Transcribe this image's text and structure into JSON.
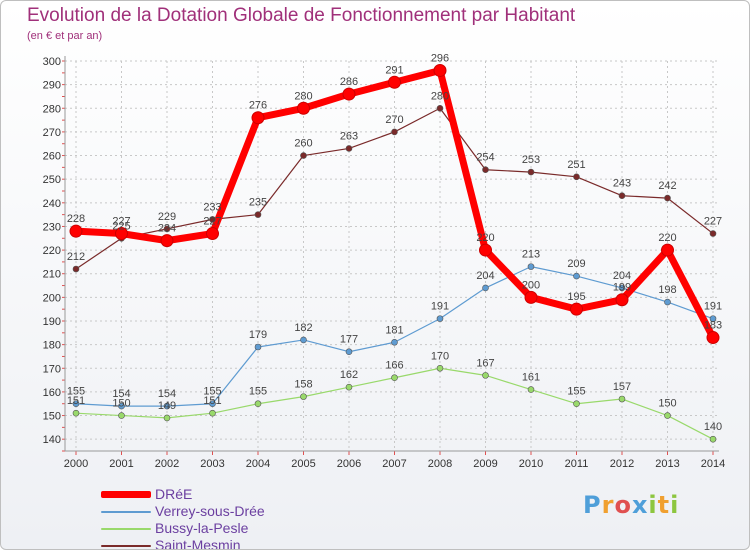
{
  "header": {
    "title": "Evolution de la Dotation Globale de Fonctionnement par Habitant",
    "subtitle": "(en € et par an)"
  },
  "logo": {
    "text": "Proxiti",
    "colors": [
      "#4f9fd9",
      "#f0a030",
      "#e05050",
      "#4f9fd9",
      "#8dc63f",
      "#f0a030",
      "#8dc63f"
    ]
  },
  "chart_data": {
    "type": "line",
    "title": "Evolution de la Dotation Globale de Fonctionnement par Habitant",
    "ylabel": "(en € et par an)",
    "xlabel": "",
    "ylim": [
      135,
      300
    ],
    "yticks": [
      140,
      150,
      160,
      170,
      180,
      190,
      200,
      210,
      220,
      230,
      240,
      250,
      260,
      270,
      280,
      290,
      300
    ],
    "grid": true,
    "legend": "bottom-left",
    "categories": [
      "2000",
      "2001",
      "2002",
      "2003",
      "2004",
      "2005",
      "2006",
      "2007",
      "2008",
      "2009",
      "2010",
      "2011",
      "2012",
      "2013",
      "2014"
    ],
    "series": [
      {
        "name": "DRéE",
        "color": "#ff0000",
        "values": [
          228,
          227,
          224,
          227,
          276,
          280,
          286,
          291,
          296,
          220,
          200,
          195,
          199,
          220,
          183
        ],
        "labels": [
          "228",
          "227",
          "224",
          "227",
          "276",
          "280",
          "286",
          "291",
          "296",
          "220",
          "200",
          "195",
          "199",
          "220",
          "183"
        ]
      },
      {
        "name": "Verrey-sous-Drée",
        "color": "#5e9bd1",
        "values": [
          155,
          154,
          154,
          155,
          179,
          182,
          177,
          181,
          191,
          204,
          213,
          209,
          204,
          198,
          191
        ],
        "labels": [
          "155",
          "154",
          "154",
          "155",
          "179",
          "182",
          "177",
          "181",
          "191",
          "204",
          "213",
          "209",
          "204",
          "198",
          "191"
        ]
      },
      {
        "name": "Bussy-la-Pesle",
        "color": "#99d96b",
        "values": [
          151,
          150,
          149,
          151,
          155,
          158,
          162,
          166,
          170,
          167,
          161,
          155,
          157,
          150,
          140
        ],
        "labels": [
          "151",
          "150",
          "149",
          "151",
          "155",
          "158",
          "162",
          "166",
          "170",
          "167",
          "161",
          "155",
          "157",
          "150",
          "140"
        ]
      },
      {
        "name": "Saint-Mesmin",
        "color": "#7a2a2a",
        "values": [
          212,
          225,
          229,
          233,
          235,
          260,
          263,
          270,
          280,
          254,
          253,
          251,
          243,
          242,
          227
        ],
        "labels": [
          "212",
          "225",
          "229",
          "233",
          "235",
          "260",
          "263",
          "270",
          "280",
          "254",
          "253",
          "251",
          "243",
          "242",
          "227"
        ]
      }
    ]
  }
}
